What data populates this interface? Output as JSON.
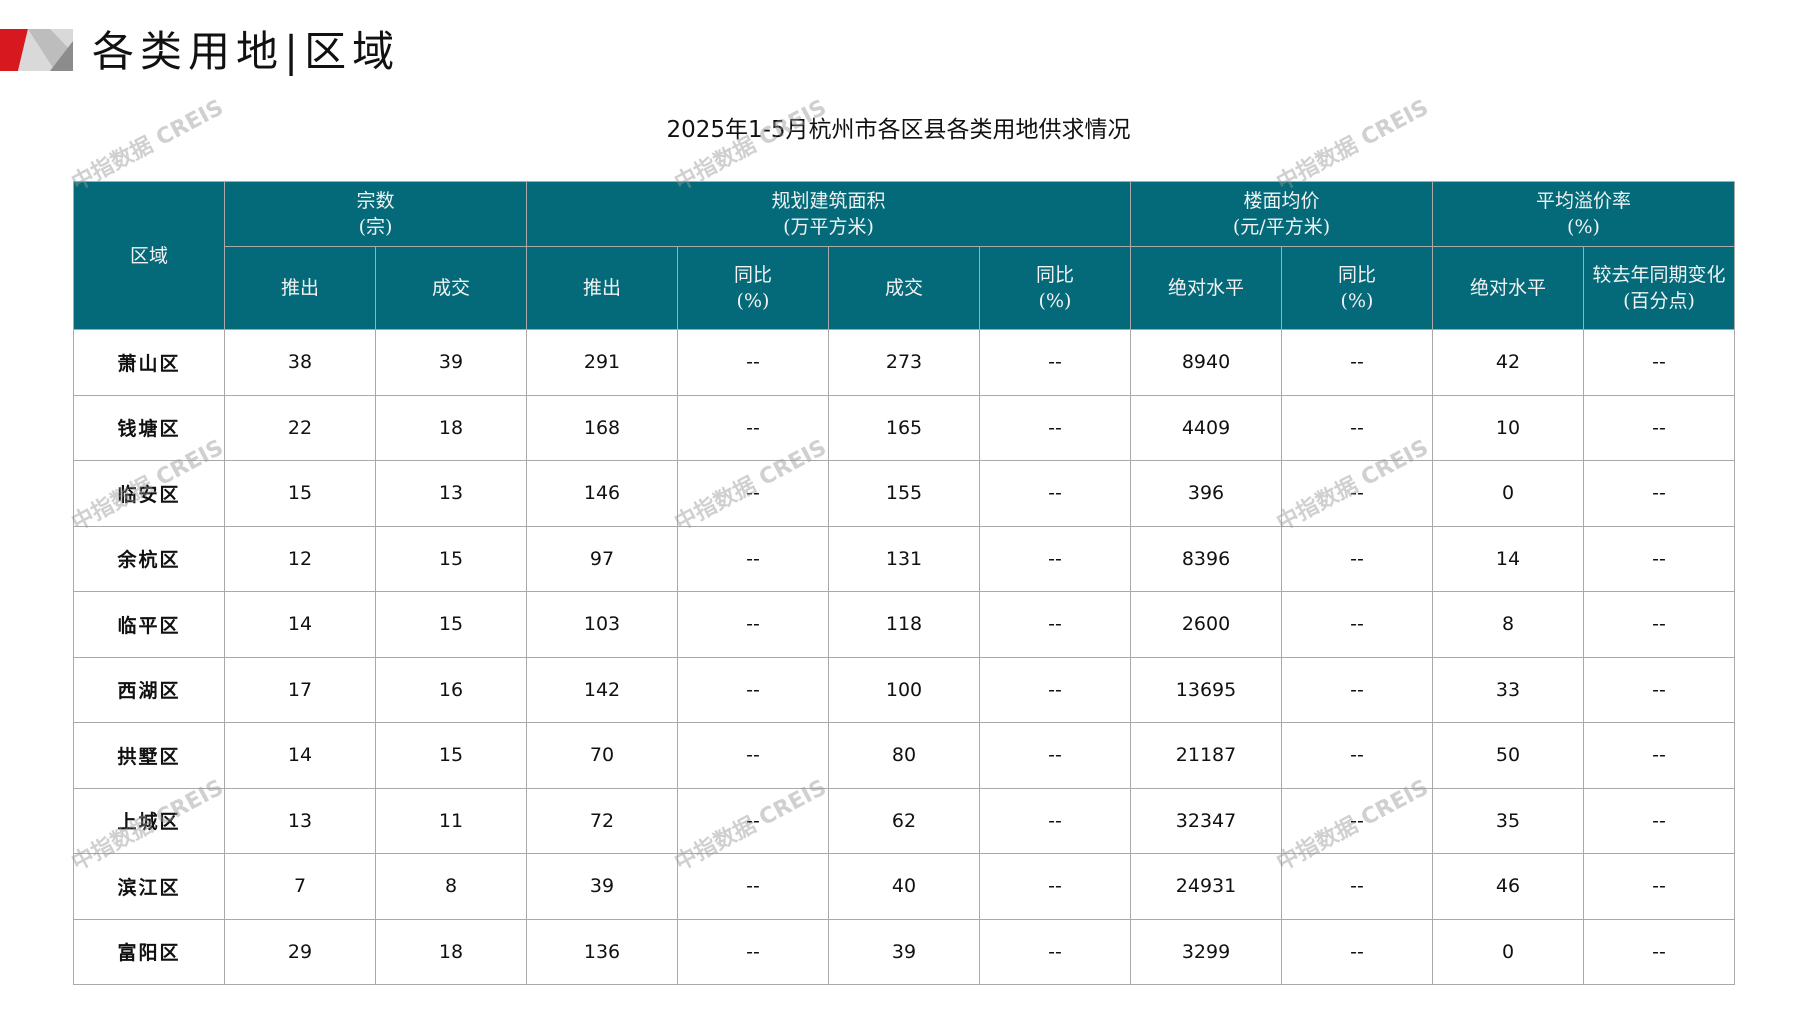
{
  "header": {
    "title": "各类用地|区域"
  },
  "table_title": "2025年1-5月杭州市各区县各类用地供求情况",
  "watermark": "中指数据 CREIS",
  "colors": {
    "header_bg": "#046a79",
    "logo_red": "#d7191f",
    "logo_gray": "#bdbdbd"
  },
  "columns": {
    "region": "区域",
    "groups": [
      "宗数\n(宗)",
      "规划建筑面积\n(万平方米)",
      "楼面均价\n(元/平方米)",
      "平均溢价率\n(%)"
    ],
    "sub": [
      "推出",
      "成交",
      "推出",
      "同比\n(%)",
      "成交",
      "同比\n(%)",
      "绝对水平",
      "同比\n(%)",
      "绝对水平",
      "较去年同期变化\n(百分点)"
    ]
  },
  "rows": [
    [
      "萧山区",
      "38",
      "39",
      "291",
      "--",
      "273",
      "--",
      "8940",
      "--",
      "42",
      "--"
    ],
    [
      "钱塘区",
      "22",
      "18",
      "168",
      "--",
      "165",
      "--",
      "4409",
      "--",
      "10",
      "--"
    ],
    [
      "临安区",
      "15",
      "13",
      "146",
      "--",
      "155",
      "--",
      "396",
      "--",
      "0",
      "--"
    ],
    [
      "余杭区",
      "12",
      "15",
      "97",
      "--",
      "131",
      "--",
      "8396",
      "--",
      "14",
      "--"
    ],
    [
      "临平区",
      "14",
      "15",
      "103",
      "--",
      "118",
      "--",
      "2600",
      "--",
      "8",
      "--"
    ],
    [
      "西湖区",
      "17",
      "16",
      "142",
      "--",
      "100",
      "--",
      "13695",
      "--",
      "33",
      "--"
    ],
    [
      "拱墅区",
      "14",
      "15",
      "70",
      "--",
      "80",
      "--",
      "21187",
      "--",
      "50",
      "--"
    ],
    [
      "上城区",
      "13",
      "11",
      "72",
      "--",
      "62",
      "--",
      "32347",
      "--",
      "35",
      "--"
    ],
    [
      "滨江区",
      "7",
      "8",
      "39",
      "--",
      "40",
      "--",
      "24931",
      "--",
      "46",
      "--"
    ],
    [
      "富阳区",
      "29",
      "18",
      "136",
      "--",
      "39",
      "--",
      "3299",
      "--",
      "0",
      "--"
    ]
  ]
}
